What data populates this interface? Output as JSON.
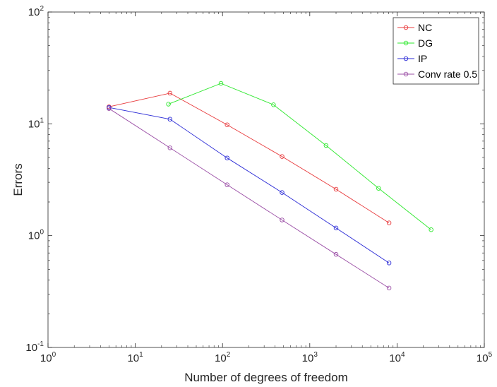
{
  "chart_data": {
    "type": "line",
    "title": "",
    "xlabel": "Number of degrees of freedom",
    "ylabel": "Errors",
    "xscale": "log",
    "yscale": "log",
    "xlim": [
      1,
      100000
    ],
    "ylim": [
      0.1,
      100
    ],
    "grid": false,
    "legend_position": "top-right",
    "x_ticks": [
      {
        "base": "10",
        "exp": "0"
      },
      {
        "base": "10",
        "exp": "1"
      },
      {
        "base": "10",
        "exp": "2"
      },
      {
        "base": "10",
        "exp": "3"
      },
      {
        "base": "10",
        "exp": "4"
      },
      {
        "base": "10",
        "exp": "5"
      }
    ],
    "y_ticks": [
      {
        "base": "10",
        "exp": "-1"
      },
      {
        "base": "10",
        "exp": "0"
      },
      {
        "base": "10",
        "exp": "1"
      },
      {
        "base": "10",
        "exp": "2"
      }
    ],
    "series": [
      {
        "name": "NC",
        "color": "#e8393b",
        "x": [
          5,
          25,
          113,
          481,
          2000,
          8100
        ],
        "y": [
          14.2,
          18.8,
          9.8,
          5.1,
          2.6,
          1.3
        ]
      },
      {
        "name": "DG",
        "color": "#2ee82e",
        "x": [
          24,
          96,
          384,
          1536,
          6144,
          24576
        ],
        "y": [
          15.0,
          23.0,
          14.8,
          6.4,
          2.65,
          1.13
        ]
      },
      {
        "name": "IP",
        "color": "#2b2bd6",
        "x": [
          5,
          25,
          113,
          481,
          2000,
          8100
        ],
        "y": [
          14.0,
          11.0,
          4.95,
          2.43,
          1.17,
          0.57
        ]
      },
      {
        "name": "Conv rate 0.5",
        "color": "#9b4fa6",
        "x": [
          5,
          25,
          113,
          481,
          2000,
          8100
        ],
        "y": [
          13.7,
          6.1,
          2.85,
          1.38,
          0.68,
          0.34
        ]
      }
    ]
  }
}
